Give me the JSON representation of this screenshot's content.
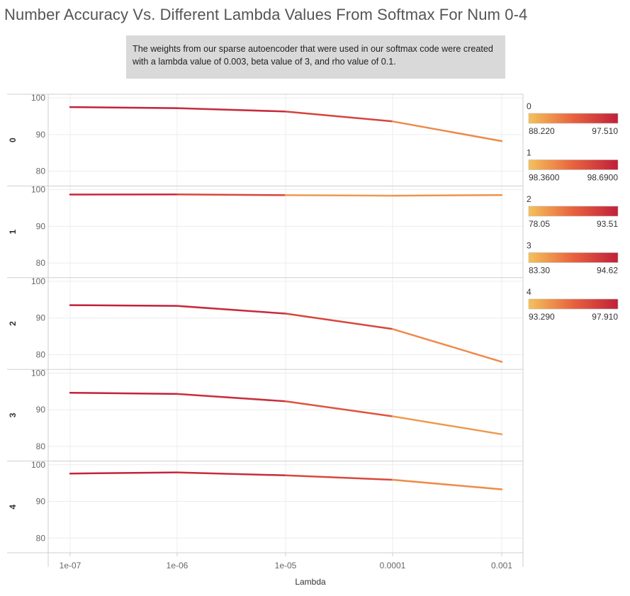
{
  "title": "Number Accuracy Vs. Different Lambda Values From Softmax For Num 0-4",
  "note": "The weights from our sparse autoencoder that were used in our softmax code were created with a lambda value of 0.003, beta value of 3, and rho value of 0.1.",
  "colors": {
    "low": "#f5c15a",
    "mid": "#e8623e",
    "high": "#c0203a",
    "grid": "#ececec",
    "border": "#cfcfcf"
  },
  "chart_data": {
    "type": "line",
    "title": "Number Accuracy Vs. Different Lambda Values From Softmax For Num 0-4",
    "xlabel": "Lambda",
    "categories": [
      "1e-07",
      "1e-06",
      "1e-05",
      "0.0001",
      "0.001"
    ],
    "ylim": [
      76,
      101
    ],
    "yticks": [
      80,
      90,
      100
    ],
    "grid": true,
    "legend": "right",
    "series": [
      {
        "name": "0",
        "values": [
          97.51,
          97.2,
          96.3,
          93.6,
          88.22
        ],
        "legend_min": "88.220",
        "legend_max": "97.510"
      },
      {
        "name": "1",
        "values": [
          98.66,
          98.69,
          98.5,
          98.36,
          98.52
        ],
        "legend_min": "98.3600",
        "legend_max": "98.6900"
      },
      {
        "name": "2",
        "values": [
          93.51,
          93.3,
          91.2,
          87.0,
          78.05
        ],
        "legend_min": "78.05",
        "legend_max": "93.51"
      },
      {
        "name": "3",
        "values": [
          94.62,
          94.3,
          92.3,
          88.2,
          83.3
        ],
        "legend_min": "83.30",
        "legend_max": "94.62"
      },
      {
        "name": "4",
        "values": [
          97.6,
          97.91,
          97.1,
          95.9,
          93.29
        ],
        "legend_min": "93.290",
        "legend_max": "97.910"
      }
    ]
  }
}
